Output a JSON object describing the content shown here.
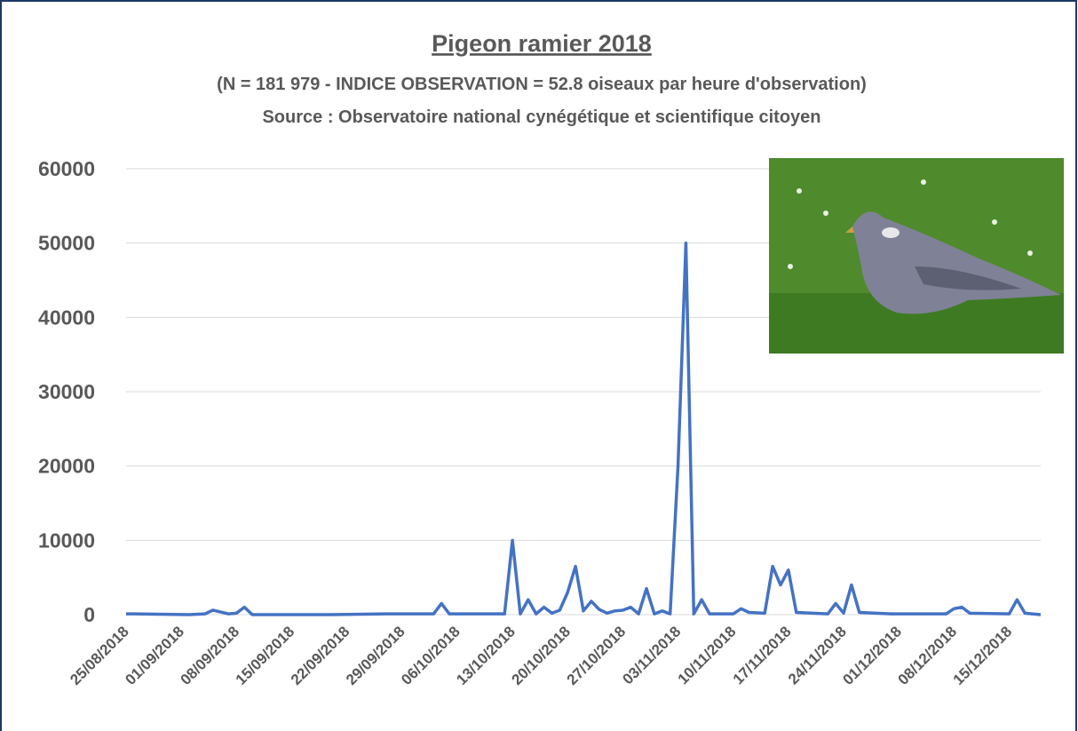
{
  "chart_data": {
    "type": "line",
    "title": "Pigeon ramier 2018",
    "subtitle": "(N = 181 979 - INDICE OBSERVATION = 52.8  oiseaux par heure d'observation)",
    "source": "Source : Observatoire national cynégétique et scientifique citoyen",
    "x": [
      "25/08/2018",
      "26/08/2018",
      "02/09/2018",
      "04/09/2018",
      "05/09/2018",
      "07/09/2018",
      "08/09/2018",
      "09/09/2018",
      "10/09/2018",
      "20/09/2018",
      "27/09/2018",
      "03/10/2018",
      "04/10/2018",
      "05/10/2018",
      "12/10/2018",
      "13/10/2018",
      "14/10/2018",
      "15/10/2018",
      "16/10/2018",
      "17/10/2018",
      "18/10/2018",
      "19/10/2018",
      "20/10/2018",
      "21/10/2018",
      "22/10/2018",
      "23/10/2018",
      "24/10/2018",
      "25/10/2018",
      "26/10/2018",
      "27/10/2018",
      "28/10/2018",
      "29/10/2018",
      "30/10/2018",
      "31/10/2018",
      "01/11/2018",
      "02/11/2018",
      "03/11/2018",
      "04/11/2018",
      "05/11/2018",
      "06/11/2018",
      "07/11/2018",
      "10/11/2018",
      "11/11/2018",
      "12/11/2018",
      "14/11/2018",
      "15/11/2018",
      "16/11/2018",
      "17/11/2018",
      "18/11/2018",
      "22/11/2018",
      "23/11/2018",
      "24/11/2018",
      "25/11/2018",
      "26/11/2018",
      "30/11/2018",
      "07/12/2018",
      "08/12/2018",
      "09/12/2018",
      "10/12/2018",
      "15/12/2018",
      "16/12/2018",
      "17/12/2018",
      "19/12/2018"
    ],
    "series": [
      {
        "color": "#4472c4",
        "values": [
          100,
          100,
          0,
          100,
          600,
          100,
          200,
          1000,
          0,
          0,
          100,
          100,
          1500,
          100,
          100,
          10000,
          100,
          2000,
          100,
          1000,
          200,
          600,
          3000,
          6500,
          500,
          1800,
          700,
          200,
          500,
          600,
          1000,
          100,
          3500,
          100,
          500,
          100,
          20000,
          50000,
          100,
          2000,
          100,
          100,
          800,
          300,
          200,
          6500,
          4000,
          6000,
          300,
          100,
          1500,
          200,
          4000,
          300,
          100,
          100,
          800,
          1000,
          200,
          100,
          2000,
          200,
          0
        ]
      }
    ],
    "xlim": [
      "25/08/2018",
      "19/12/2018"
    ],
    "xticks": [
      "25/08/2018",
      "01/09/2018",
      "08/09/2018",
      "15/09/2018",
      "22/09/2018",
      "29/09/2018",
      "06/10/2018",
      "13/10/2018",
      "20/10/2018",
      "27/10/2018",
      "03/11/2018",
      "10/11/2018",
      "17/11/2018",
      "24/11/2018",
      "01/12/2018",
      "08/12/2018",
      "15/12/2018"
    ],
    "ylim": [
      0,
      60000
    ],
    "yticks": [
      0,
      10000,
      20000,
      30000,
      40000,
      50000,
      60000
    ],
    "grid": true
  }
}
